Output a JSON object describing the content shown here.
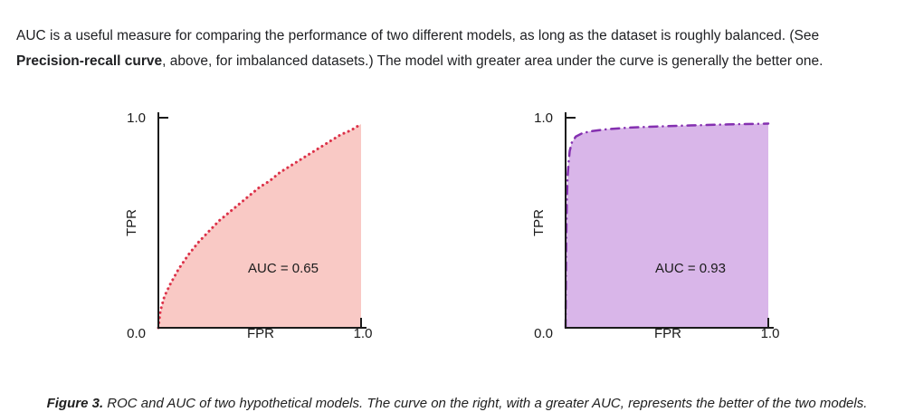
{
  "intro": {
    "text_before": "AUC is a useful measure for comparing the performance of two different models, as long as the dataset is roughly balanced. (See ",
    "bold_text": "Precision-recall curve",
    "text_after": ", above, for imbalanced datasets.) The model with greater area under the curve is generally the better one."
  },
  "caption": {
    "label": "Figure 3.",
    "text": " ROC and AUC of two hypothetical models. The curve on the right, with a greater AUC, represents the better of the two models."
  },
  "chart_data": [
    {
      "type": "area",
      "name": "roc-model-1",
      "title": "",
      "xlabel": "FPR",
      "ylabel": "TPR",
      "xlim": [
        0,
        1
      ],
      "ylim": [
        0,
        1
      ],
      "x_tick_labels": [
        "0.0",
        "1.0"
      ],
      "y_tick_labels": [
        "0.0",
        "1.0"
      ],
      "annotation": "AUC = 0.65",
      "auc": 0.65,
      "line_style": "dotted",
      "stroke_color": "#dc3148",
      "fill_color": "#f9c9c5",
      "grid": false,
      "points": [
        [
          0,
          0
        ],
        [
          0.01,
          0.08
        ],
        [
          0.03,
          0.15
        ],
        [
          0.06,
          0.21
        ],
        [
          0.1,
          0.28
        ],
        [
          0.15,
          0.35
        ],
        [
          0.2,
          0.41
        ],
        [
          0.25,
          0.46
        ],
        [
          0.3,
          0.51
        ],
        [
          0.35,
          0.55
        ],
        [
          0.4,
          0.59
        ],
        [
          0.45,
          0.63
        ],
        [
          0.5,
          0.67
        ],
        [
          0.55,
          0.7
        ],
        [
          0.6,
          0.74
        ],
        [
          0.65,
          0.77
        ],
        [
          0.7,
          0.8
        ],
        [
          0.75,
          0.83
        ],
        [
          0.8,
          0.86
        ],
        [
          0.85,
          0.89
        ],
        [
          0.9,
          0.92
        ],
        [
          0.95,
          0.94
        ],
        [
          1,
          0.97
        ]
      ]
    },
    {
      "type": "area",
      "name": "roc-model-2",
      "title": "",
      "xlabel": "FPR",
      "ylabel": "TPR",
      "xlim": [
        0,
        1
      ],
      "ylim": [
        0,
        1
      ],
      "x_tick_labels": [
        "0.0",
        "1.0"
      ],
      "y_tick_labels": [
        "0.0",
        "1.0"
      ],
      "annotation": "AUC = 0.93",
      "auc": 0.93,
      "line_style": "dash-dot",
      "stroke_color": "#8430b0",
      "fill_color": "#d9b6e9",
      "grid": false,
      "points": [
        [
          0,
          0
        ],
        [
          0.003,
          0.42
        ],
        [
          0.006,
          0.6
        ],
        [
          0.01,
          0.72
        ],
        [
          0.015,
          0.79
        ],
        [
          0.02,
          0.84
        ],
        [
          0.03,
          0.88
        ],
        [
          0.05,
          0.91
        ],
        [
          0.08,
          0.925
        ],
        [
          0.12,
          0.935
        ],
        [
          0.2,
          0.945
        ],
        [
          0.3,
          0.952
        ],
        [
          0.45,
          0.958
        ],
        [
          0.6,
          0.963
        ],
        [
          0.8,
          0.968
        ],
        [
          1,
          0.972
        ]
      ]
    }
  ]
}
